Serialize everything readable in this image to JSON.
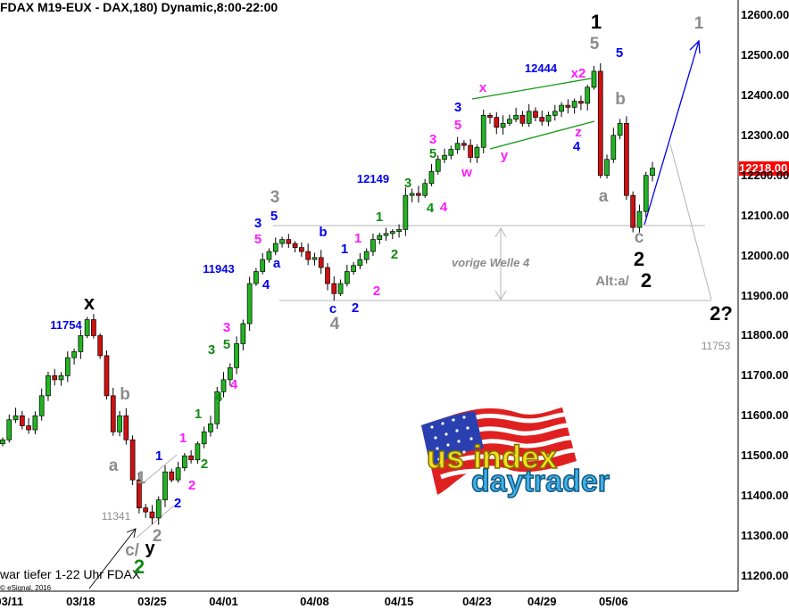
{
  "title": "FDAX M19-EUX - DAX,180) Dynamic,8:00-22:00",
  "note": "war tiefer 1-22 Uhr FDAX",
  "copyright": "© eSignal, 2016",
  "logo": {
    "line1": "us index",
    "line2": "daytrader"
  },
  "colors": {
    "up": "#22b422",
    "down": "#d01010",
    "price_tag": "#ff0000",
    "projection": "#0000ee",
    "channel": "#119911",
    "guide": "#b4b4b4"
  },
  "chart_data": {
    "type": "candlestick",
    "ylim": [
      11160,
      12660
    ],
    "yticks": [
      "12600.00",
      "12500.00",
      "12400.00",
      "12300.00",
      "12200.00",
      "12100.00",
      "12000.00",
      "11900.00",
      "11800.00",
      "11700.00",
      "11600.00",
      "11500.00",
      "11400.00",
      "11300.00",
      "11200.00"
    ],
    "xticks": [
      {
        "label": "03/11",
        "bar": 1
      },
      {
        "label": "03/18",
        "bar": 12
      },
      {
        "label": "03/25",
        "bar": 23
      },
      {
        "label": "04/01",
        "bar": 34
      },
      {
        "label": "04/08",
        "bar": 48
      },
      {
        "label": "04/15",
        "bar": 61
      },
      {
        "label": "04/23",
        "bar": 73
      },
      {
        "label": "04/29",
        "bar": 83
      },
      {
        "label": "05/06",
        "bar": 94
      }
    ],
    "last_price": "12218.00",
    "closes_approx": [
      11540,
      11590,
      11600,
      11575,
      11565,
      11600,
      11650,
      11700,
      11690,
      11700,
      11745,
      11760,
      11800,
      11840,
      11800,
      11750,
      11650,
      11560,
      11600,
      11540,
      11440,
      11370,
      11360,
      11345,
      11390,
      11460,
      11440,
      11470,
      11500,
      11490,
      11530,
      11560,
      11580,
      11660,
      11690,
      11720,
      11780,
      11830,
      11930,
      11960,
      11990,
      12010,
      12030,
      12040,
      12030,
      12020,
      12010,
      11990,
      11995,
      11970,
      11930,
      11905,
      11930,
      11960,
      11975,
      11990,
      12010,
      12040,
      12050,
      12055,
      12060,
      12065,
      12150,
      12155,
      12150,
      12180,
      12210,
      12240,
      12250,
      12265,
      12280,
      12275,
      12245,
      12270,
      12350,
      12345,
      12320,
      12330,
      12340,
      12350,
      12330,
      12360,
      12345,
      12335,
      12350,
      12360,
      12375,
      12370,
      12385,
      12380,
      12420,
      12460,
      12200,
      12240,
      12300,
      12330,
      12150,
      12070,
      12110,
      12200,
      12218
    ],
    "levels": {
      "prev_wave4_top": 12055,
      "prev_wave4_bottom": 11868
    }
  },
  "annotations": {
    "x_black": "x",
    "one_black": "1",
    "two_black": "2",
    "alt_two": "2",
    "two_q": "2?",
    "y_black": "y",
    "b1": "b",
    "a1": "a",
    "g1": "1",
    "g2": "2",
    "cslash": "c/",
    "g3": "3",
    "g4": "4",
    "g5": "5",
    "b2": "b",
    "a2": "a",
    "c2": "c",
    "g1top": "1",
    "p11341": "11341",
    "p11753": "11753",
    "alt": "Alt:a/",
    "vorige": "vorige Welle 4",
    "gr2big": "2",
    "gr1a": "1",
    "gr2a": "2",
    "gr3a": "3",
    "gr5a": "5",
    "gr4a": "4",
    "gr1b": "1",
    "gr2b": "2",
    "gr3b": "3",
    "gr5b": "5",
    "gr4b": "4",
    "p11754": "11754",
    "bl1a": "1",
    "bl2a": "2",
    "bl3a": "3",
    "bl5a": "5",
    "bl4a": "4",
    "bla": "a",
    "blb": "b",
    "bl1b": "1",
    "blc": "c",
    "bl2b": "2",
    "p11943": "11943",
    "p12149": "12149",
    "bl3b": "3",
    "bl5b": "5",
    "p12444": "12444",
    "bl4b": "4",
    "m1a": "1",
    "m2a": "2",
    "m3a": "3",
    "m4a": "4",
    "m5a": "5",
    "m1b": "1",
    "m2b": "2",
    "m3b": "3",
    "m4b": "4",
    "m5b": "5",
    "mw": "w",
    "mx": "x",
    "my": "y",
    "mz": "z",
    "mx2": "x2"
  }
}
